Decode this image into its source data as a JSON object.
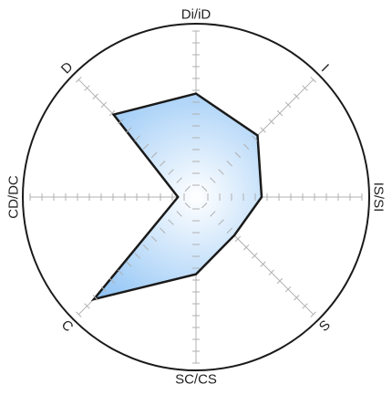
{
  "chart_data": {
    "type": "radar",
    "title": "",
    "axes": [
      {
        "key": "Di/iD",
        "label": "Di/iD",
        "value": 0.63
      },
      {
        "key": "I",
        "label": "I",
        "value": 0.53
      },
      {
        "key": "IS/SI",
        "label": "IS/SI",
        "value": 0.4
      },
      {
        "key": "S",
        "label": "S",
        "value": 0.33
      },
      {
        "key": "SC/CS",
        "label": "SC/CS",
        "value": 0.47
      },
      {
        "key": "C",
        "label": "C",
        "value": 0.88
      },
      {
        "key": "CD/DC",
        "label": "CD/DC",
        "value": 0.11
      },
      {
        "key": "D",
        "label": "D",
        "value": 0.71
      }
    ],
    "scale": {
      "min": 0,
      "max": 1,
      "ticks_per_axis": 14
    },
    "grid": "radial axes with tick marks, outer circle",
    "colors": {
      "fill_inner": "#ffffff",
      "fill_outer": "#8ec3f5",
      "stroke": "#1a1a1a",
      "axis": "#b0b0b0",
      "circle": "#1a1a1a",
      "label": "#222222"
    }
  }
}
